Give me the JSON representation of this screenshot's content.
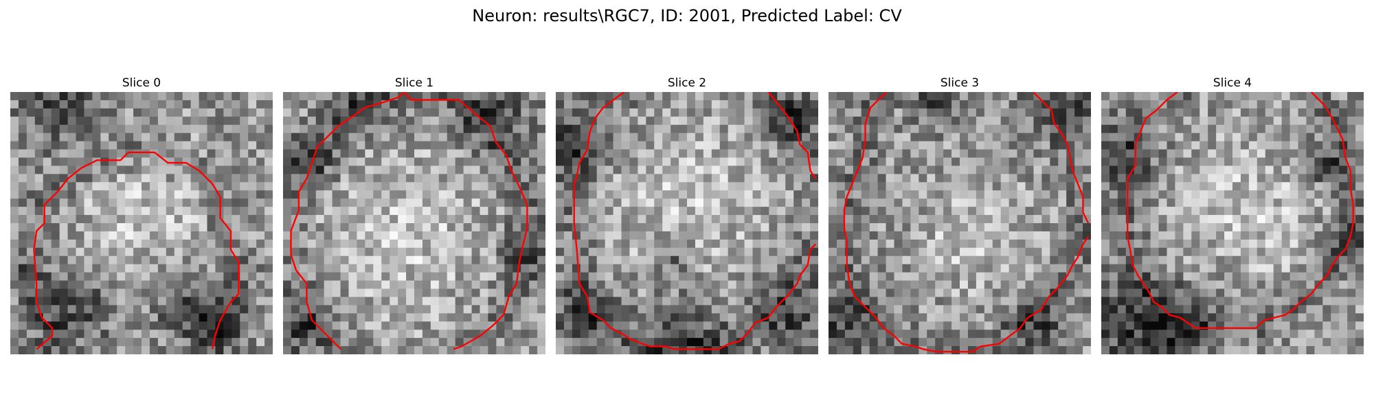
{
  "figure": {
    "title": "Neuron: results\\RGC7, ID: 2001, Predicted Label: CV"
  },
  "grid_size": 32,
  "contour_color": "#ff0000",
  "colormap": "gray",
  "slices": [
    {
      "title": "Slice 0",
      "seed": 11,
      "dark": [
        [
          0.2,
          0.05,
          0.12
        ],
        [
          0.25,
          0.83,
          0.1
        ],
        [
          0.7,
          0.83,
          0.1
        ],
        [
          0.03,
          0.7,
          0.04
        ],
        [
          0.8,
          0.9,
          0.06
        ]
      ],
      "bright": [
        [
          0.52,
          0.45,
          0.18
        ]
      ],
      "contour": [
        [
          0.1,
          0.98
        ],
        [
          0.16,
          0.93
        ],
        [
          0.16,
          0.9
        ],
        [
          0.12,
          0.86
        ],
        [
          0.1,
          0.8
        ],
        [
          0.1,
          0.73
        ],
        [
          0.09,
          0.6
        ],
        [
          0.1,
          0.53
        ],
        [
          0.13,
          0.5
        ],
        [
          0.13,
          0.43
        ],
        [
          0.18,
          0.38
        ],
        [
          0.22,
          0.33
        ],
        [
          0.27,
          0.29
        ],
        [
          0.33,
          0.26
        ],
        [
          0.42,
          0.26
        ],
        [
          0.45,
          0.23
        ],
        [
          0.55,
          0.23
        ],
        [
          0.6,
          0.27
        ],
        [
          0.67,
          0.27
        ],
        [
          0.72,
          0.3
        ],
        [
          0.77,
          0.35
        ],
        [
          0.8,
          0.4
        ],
        [
          0.8,
          0.48
        ],
        [
          0.84,
          0.53
        ],
        [
          0.84,
          0.6
        ],
        [
          0.87,
          0.65
        ],
        [
          0.87,
          0.77
        ],
        [
          0.84,
          0.8
        ],
        [
          0.8,
          0.87
        ],
        [
          0.78,
          0.93
        ],
        [
          0.77,
          0.98
        ]
      ]
    },
    {
      "title": "Slice 1",
      "seed": 23,
      "dark": [
        [
          0.1,
          0.25,
          0.08
        ],
        [
          0.8,
          0.1,
          0.1
        ],
        [
          0.05,
          0.9,
          0.1
        ],
        [
          0.95,
          0.6,
          0.08
        ],
        [
          0.3,
          0.05,
          0.08
        ]
      ],
      "bright": [
        [
          0.45,
          0.55,
          0.25
        ]
      ],
      "contour": [
        [
          0.22,
          0.98
        ],
        [
          0.17,
          0.93
        ],
        [
          0.11,
          0.87
        ],
        [
          0.09,
          0.8
        ],
        [
          0.09,
          0.73
        ],
        [
          0.05,
          0.68
        ],
        [
          0.03,
          0.62
        ],
        [
          0.03,
          0.53
        ],
        [
          0.06,
          0.45
        ],
        [
          0.06,
          0.38
        ],
        [
          0.09,
          0.33
        ],
        [
          0.11,
          0.27
        ],
        [
          0.13,
          0.21
        ],
        [
          0.17,
          0.17
        ],
        [
          0.21,
          0.13
        ],
        [
          0.27,
          0.09
        ],
        [
          0.31,
          0.06
        ],
        [
          0.38,
          0.04
        ],
        [
          0.44,
          0.02
        ],
        [
          0.46,
          0.0
        ],
        [
          0.49,
          0.03
        ],
        [
          0.67,
          0.03
        ],
        [
          0.74,
          0.09
        ],
        [
          0.79,
          0.13
        ],
        [
          0.81,
          0.19
        ],
        [
          0.85,
          0.24
        ],
        [
          0.87,
          0.3
        ],
        [
          0.9,
          0.36
        ],
        [
          0.93,
          0.43
        ],
        [
          0.93,
          0.52
        ],
        [
          0.91,
          0.6
        ],
        [
          0.9,
          0.65
        ],
        [
          0.89,
          0.73
        ],
        [
          0.86,
          0.78
        ],
        [
          0.84,
          0.85
        ],
        [
          0.8,
          0.89
        ],
        [
          0.75,
          0.93
        ],
        [
          0.68,
          0.97
        ],
        [
          0.65,
          0.98
        ]
      ]
    },
    {
      "title": "Slice 2",
      "seed": 37,
      "dark": [
        [
          0.45,
          0.63,
          0.06
        ],
        [
          0.1,
          0.85,
          0.1
        ],
        [
          0.5,
          0.95,
          0.12
        ],
        [
          0.9,
          0.85,
          0.1
        ],
        [
          0.05,
          0.2,
          0.1
        ],
        [
          0.9,
          0.1,
          0.08
        ]
      ],
      "bright": [
        [
          0.5,
          0.45,
          0.22
        ]
      ],
      "contour": [
        [
          0.26,
          0.0
        ],
        [
          0.18,
          0.06
        ],
        [
          0.15,
          0.1
        ],
        [
          0.13,
          0.15
        ],
        [
          0.12,
          0.22
        ],
        [
          0.09,
          0.27
        ],
        [
          0.08,
          0.32
        ],
        [
          0.07,
          0.35
        ],
        [
          0.07,
          0.5
        ],
        [
          0.08,
          0.6
        ],
        [
          0.09,
          0.73
        ],
        [
          0.12,
          0.78
        ],
        [
          0.13,
          0.84
        ],
        [
          0.18,
          0.87
        ],
        [
          0.21,
          0.9
        ],
        [
          0.25,
          0.92
        ],
        [
          0.28,
          0.94
        ],
        [
          0.33,
          0.96
        ],
        [
          0.36,
          0.97
        ],
        [
          0.42,
          0.97
        ],
        [
          0.45,
          0.98
        ],
        [
          0.62,
          0.98
        ],
        [
          0.66,
          0.96
        ],
        [
          0.7,
          0.95
        ],
        [
          0.73,
          0.92
        ],
        [
          0.76,
          0.88
        ],
        [
          0.81,
          0.86
        ],
        [
          0.84,
          0.82
        ],
        [
          0.88,
          0.78
        ],
        [
          0.92,
          0.73
        ],
        [
          0.93,
          0.7
        ],
        [
          0.96,
          0.66
        ],
        [
          0.97,
          0.6
        ],
        [
          0.99,
          0.58
        ]
      ],
      "contour2": [
        [
          0.81,
          0.0
        ],
        [
          0.85,
          0.05
        ],
        [
          0.89,
          0.1
        ],
        [
          0.92,
          0.15
        ],
        [
          0.93,
          0.2
        ],
        [
          0.96,
          0.23
        ],
        [
          0.97,
          0.3
        ],
        [
          0.99,
          0.33
        ]
      ]
    },
    {
      "title": "Slice 3",
      "seed": 53,
      "dark": [
        [
          0.95,
          0.05,
          0.1
        ],
        [
          0.05,
          0.9,
          0.1
        ],
        [
          0.8,
          0.88,
          0.08
        ],
        [
          0.4,
          0.05,
          0.06
        ]
      ],
      "bright": [
        [
          0.55,
          0.55,
          0.15
        ]
      ],
      "contour": [
        [
          0.22,
          0.0
        ],
        [
          0.16,
          0.06
        ],
        [
          0.14,
          0.12
        ],
        [
          0.14,
          0.18
        ],
        [
          0.13,
          0.25
        ],
        [
          0.11,
          0.3
        ],
        [
          0.09,
          0.35
        ],
        [
          0.07,
          0.4
        ],
        [
          0.06,
          0.45
        ],
        [
          0.06,
          0.52
        ],
        [
          0.07,
          0.57
        ],
        [
          0.07,
          0.66
        ],
        [
          0.08,
          0.73
        ],
        [
          0.1,
          0.78
        ],
        [
          0.14,
          0.82
        ],
        [
          0.18,
          0.86
        ],
        [
          0.21,
          0.9
        ],
        [
          0.25,
          0.93
        ],
        [
          0.28,
          0.96
        ],
        [
          0.33,
          0.97
        ],
        [
          0.36,
          0.98
        ],
        [
          0.41,
          0.99
        ],
        [
          0.55,
          0.99
        ],
        [
          0.58,
          0.97
        ],
        [
          0.65,
          0.96
        ],
        [
          0.69,
          0.93
        ],
        [
          0.73,
          0.9
        ],
        [
          0.76,
          0.86
        ],
        [
          0.81,
          0.83
        ],
        [
          0.84,
          0.78
        ],
        [
          0.87,
          0.75
        ],
        [
          0.91,
          0.7
        ],
        [
          0.93,
          0.66
        ],
        [
          0.95,
          0.63
        ],
        [
          0.97,
          0.58
        ],
        [
          0.99,
          0.55
        ]
      ],
      "contour2": [
        [
          0.78,
          0.0
        ],
        [
          0.81,
          0.03
        ],
        [
          0.85,
          0.07
        ],
        [
          0.86,
          0.12
        ],
        [
          0.89,
          0.16
        ],
        [
          0.91,
          0.2
        ],
        [
          0.92,
          0.25
        ],
        [
          0.93,
          0.3
        ],
        [
          0.95,
          0.35
        ],
        [
          0.97,
          0.4
        ],
        [
          0.97,
          0.46
        ],
        [
          0.99,
          0.5
        ]
      ]
    },
    {
      "title": "Slice 4",
      "seed": 71,
      "dark": [
        [
          0.1,
          0.9,
          0.15
        ],
        [
          0.85,
          0.28,
          0.06
        ],
        [
          0.92,
          0.58,
          0.06
        ],
        [
          0.05,
          0.25,
          0.1
        ],
        [
          0.3,
          0.9,
          0.1
        ]
      ],
      "bright": [
        [
          0.55,
          0.45,
          0.2
        ]
      ],
      "contour": [
        [
          0.29,
          0.0
        ],
        [
          0.25,
          0.03
        ],
        [
          0.21,
          0.07
        ],
        [
          0.17,
          0.1
        ],
        [
          0.15,
          0.15
        ],
        [
          0.13,
          0.2
        ],
        [
          0.13,
          0.28
        ],
        [
          0.1,
          0.33
        ],
        [
          0.1,
          0.45
        ],
        [
          0.1,
          0.55
        ],
        [
          0.11,
          0.6
        ],
        [
          0.12,
          0.66
        ],
        [
          0.14,
          0.7
        ],
        [
          0.16,
          0.73
        ],
        [
          0.18,
          0.76
        ],
        [
          0.2,
          0.8
        ],
        [
          0.23,
          0.82
        ],
        [
          0.26,
          0.85
        ],
        [
          0.3,
          0.86
        ],
        [
          0.33,
          0.88
        ],
        [
          0.36,
          0.9
        ],
        [
          0.59,
          0.9
        ],
        [
          0.62,
          0.87
        ],
        [
          0.66,
          0.86
        ],
        [
          0.7,
          0.85
        ],
        [
          0.73,
          0.83
        ],
        [
          0.76,
          0.8
        ],
        [
          0.8,
          0.77
        ],
        [
          0.83,
          0.73
        ],
        [
          0.86,
          0.7
        ],
        [
          0.88,
          0.66
        ],
        [
          0.9,
          0.63
        ],
        [
          0.93,
          0.6
        ],
        [
          0.95,
          0.55
        ],
        [
          0.96,
          0.5
        ],
        [
          0.96,
          0.43
        ],
        [
          0.95,
          0.37
        ],
        [
          0.95,
          0.3
        ],
        [
          0.93,
          0.25
        ],
        [
          0.92,
          0.18
        ],
        [
          0.9,
          0.14
        ],
        [
          0.88,
          0.1
        ],
        [
          0.85,
          0.05
        ],
        [
          0.8,
          0.0
        ]
      ]
    }
  ]
}
